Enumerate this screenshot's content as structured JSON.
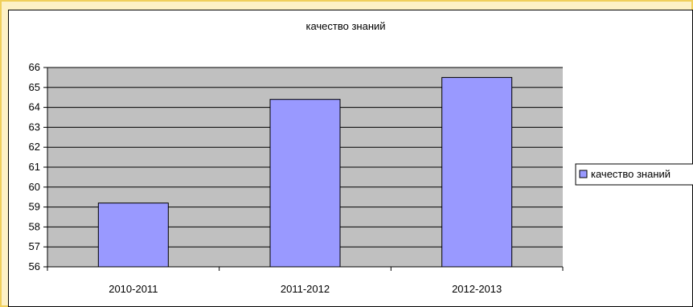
{
  "colors": {
    "slide_background": "#fdf1c6",
    "slide_border": "#f0cf5b",
    "plot_area": "#c0c0c0",
    "bar_fill": "#9999ff",
    "gridline": "#000000"
  },
  "chart_data": {
    "type": "bar",
    "title": "качество знаний",
    "xlabel": "",
    "ylabel": "",
    "categories": [
      "2010-2011",
      "2011-2012",
      "2012-2013"
    ],
    "series": [
      {
        "name": "качество знаний",
        "values": [
          59.2,
          64.4,
          65.5
        ]
      }
    ],
    "ylim": [
      56,
      66
    ],
    "yticks": [
      "56",
      "57",
      "58",
      "59",
      "60",
      "61",
      "62",
      "63",
      "64",
      "65",
      "66"
    ],
    "grid": true,
    "legend_position": "right"
  }
}
